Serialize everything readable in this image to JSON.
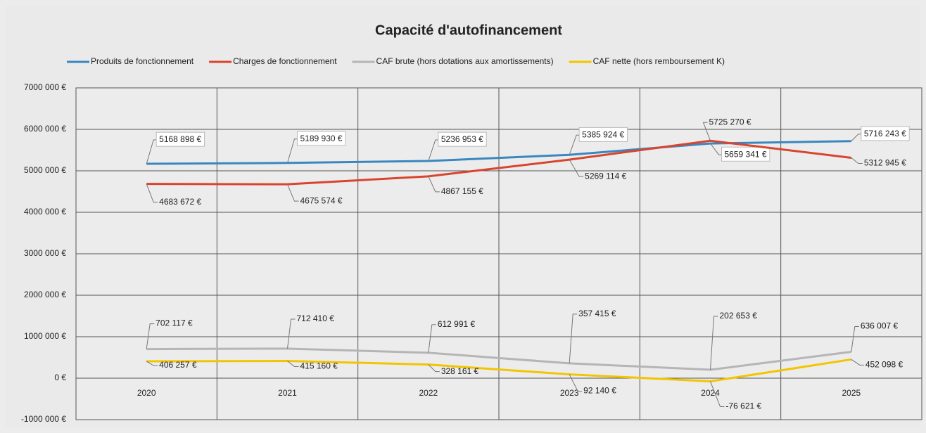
{
  "chart_data": {
    "type": "line",
    "title": "Capacité d'autofinancement",
    "categories": [
      "2020",
      "2021",
      "2022",
      "2023",
      "2024",
      "2025"
    ],
    "ylim": [
      -1000000,
      7000000
    ],
    "yticks": [
      {
        "value": -1000000,
        "label": "-1000 000 €"
      },
      {
        "value": 0,
        "label": "0 €"
      },
      {
        "value": 1000000,
        "label": "1000 000 €"
      },
      {
        "value": 2000000,
        "label": "2000 000 €"
      },
      {
        "value": 3000000,
        "label": "3000 000 €"
      },
      {
        "value": 4000000,
        "label": "4000 000 €"
      },
      {
        "value": 5000000,
        "label": "5000 000 €"
      },
      {
        "value": 6000000,
        "label": "6000 000 €"
      },
      {
        "value": 7000000,
        "label": "7000 000 €"
      }
    ],
    "grid": true,
    "legend": "top",
    "series": [
      {
        "name": "Produits de fonctionnement",
        "color": "#3a87c0",
        "values": [
          5168898,
          5189930,
          5236953,
          5385924,
          5659341,
          5716243
        ],
        "value_labels": [
          "5168 898 €",
          "5189 930 €",
          "5236 953 €",
          "5385 924 €",
          "5659 341 €",
          "5716 243 €"
        ]
      },
      {
        "name": "Charges de fonctionnement",
        "color": "#d9442e",
        "values": [
          4683672,
          4675574,
          4867155,
          5269114,
          5725270,
          5312945
        ],
        "value_labels": [
          "4683 672 €",
          "4675 574 €",
          "4867 155 €",
          "5269 114 €",
          "5725 270 €",
          "5312 945 €"
        ]
      },
      {
        "name": "CAF brute (hors dotations aux amortissements)",
        "color": "#b5b5b5",
        "values": [
          702117,
          712410,
          612991,
          357415,
          202653,
          636007
        ],
        "value_labels": [
          "702 117 €",
          "712 410 €",
          "612 991 €",
          "357 415 €",
          "202 653 €",
          "636 007 €"
        ]
      },
      {
        "name": "CAF nette (hors remboursement K)",
        "color": "#f2c500",
        "values": [
          406257,
          415160,
          328161,
          92140,
          -76621,
          452098
        ],
        "value_labels": [
          "406 257 €",
          "415 160 €",
          "328 161 €",
          "92 140 €",
          "-76 621 €",
          "452 098 €"
        ]
      }
    ]
  }
}
